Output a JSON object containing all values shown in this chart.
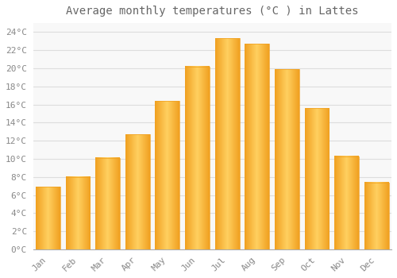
{
  "title": "Average monthly temperatures (°C ) in Lattes",
  "months": [
    "Jan",
    "Feb",
    "Mar",
    "Apr",
    "May",
    "Jun",
    "Jul",
    "Aug",
    "Sep",
    "Oct",
    "Nov",
    "Dec"
  ],
  "values": [
    6.9,
    8.0,
    10.1,
    12.7,
    16.4,
    20.2,
    23.3,
    22.7,
    19.9,
    15.6,
    10.3,
    7.4
  ],
  "bar_color_center": "#FFD060",
  "bar_color_edge": "#F0A020",
  "background_color": "#FFFFFF",
  "plot_bg_color": "#F8F8F8",
  "grid_color": "#DDDDDD",
  "text_color": "#888888",
  "title_color": "#666666",
  "ylim": [
    0,
    25
  ],
  "yticks": [
    0,
    2,
    4,
    6,
    8,
    10,
    12,
    14,
    16,
    18,
    20,
    22,
    24
  ],
  "title_fontsize": 10,
  "tick_fontsize": 8,
  "bar_width": 0.82
}
